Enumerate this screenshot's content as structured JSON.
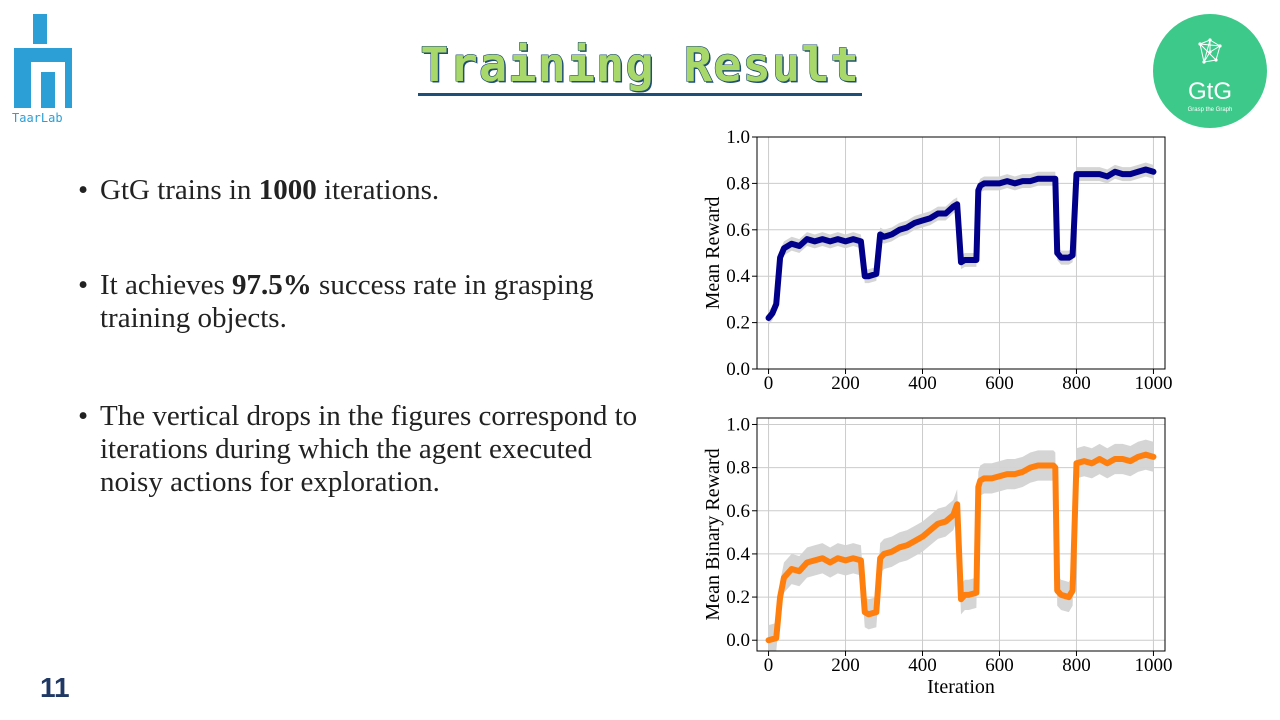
{
  "logo_left": {
    "text": "TaarLab",
    "color": "#2b9fd6"
  },
  "title": "Training Result",
  "logo_right": {
    "name": "GtG",
    "tagline": "Grasp the Graph",
    "color": "#3dc98a"
  },
  "bullets": [
    {
      "pre": "GtG trains in ",
      "bold": "1000",
      "post": " iterations."
    },
    {
      "pre": "It achieves ",
      "bold": "97.5%",
      "post": " success rate in grasping training objects."
    },
    {
      "pre": "",
      "bold": "",
      "post": "The vertical drops in the figures correspond to iterations during which the agent executed noisy actions for exploration."
    }
  ],
  "page_number": "11",
  "chart_data": [
    {
      "type": "line",
      "xlabel": "",
      "ylabel": "Mean Reward",
      "xlim": [
        -30,
        1030
      ],
      "ylim": [
        0.0,
        1.0
      ],
      "xticks": [
        "0",
        "200",
        "400",
        "600",
        "800",
        "1000"
      ],
      "yticks": [
        "0.0",
        "0.2",
        "0.4",
        "0.6",
        "0.8",
        "1.0"
      ],
      "grid": true,
      "line_color": "#00008b",
      "band_color": "#d3d3d3",
      "x": [
        0,
        10,
        20,
        30,
        40,
        60,
        80,
        100,
        120,
        140,
        160,
        180,
        200,
        220,
        240,
        250,
        260,
        280,
        290,
        300,
        320,
        340,
        360,
        380,
        400,
        420,
        440,
        460,
        480,
        490,
        500,
        510,
        520,
        540,
        545,
        550,
        560,
        580,
        600,
        620,
        640,
        660,
        680,
        700,
        720,
        740,
        745,
        750,
        760,
        780,
        790,
        800,
        820,
        840,
        860,
        880,
        900,
        920,
        940,
        960,
        980,
        1000
      ],
      "y": [
        0.22,
        0.24,
        0.28,
        0.48,
        0.52,
        0.54,
        0.53,
        0.56,
        0.55,
        0.56,
        0.55,
        0.56,
        0.55,
        0.56,
        0.55,
        0.4,
        0.4,
        0.41,
        0.58,
        0.57,
        0.58,
        0.6,
        0.61,
        0.63,
        0.64,
        0.65,
        0.67,
        0.67,
        0.7,
        0.71,
        0.46,
        0.47,
        0.47,
        0.47,
        0.77,
        0.79,
        0.8,
        0.8,
        0.8,
        0.81,
        0.8,
        0.81,
        0.81,
        0.82,
        0.82,
        0.82,
        0.82,
        0.5,
        0.48,
        0.48,
        0.49,
        0.84,
        0.84,
        0.84,
        0.84,
        0.83,
        0.85,
        0.84,
        0.84,
        0.85,
        0.86,
        0.85
      ],
      "band_width": 0.03
    },
    {
      "type": "line",
      "xlabel": "Iteration",
      "ylabel": "Mean Binary Reward",
      "xlim": [
        -30,
        1030
      ],
      "ylim": [
        -0.05,
        1.03
      ],
      "xticks": [
        "0",
        "200",
        "400",
        "600",
        "800",
        "1000"
      ],
      "yticks": [
        "0.0",
        "0.2",
        "0.4",
        "0.6",
        "0.8",
        "1.0"
      ],
      "grid": true,
      "line_color": "#ff7f0e",
      "band_color": "#d3d3d3",
      "x": [
        0,
        20,
        30,
        40,
        60,
        80,
        100,
        120,
        140,
        160,
        180,
        200,
        220,
        240,
        250,
        260,
        280,
        290,
        300,
        320,
        340,
        360,
        380,
        400,
        420,
        440,
        460,
        480,
        490,
        500,
        510,
        520,
        540,
        545,
        550,
        560,
        580,
        600,
        620,
        640,
        660,
        680,
        700,
        720,
        740,
        745,
        750,
        760,
        780,
        790,
        800,
        820,
        840,
        860,
        880,
        900,
        920,
        940,
        960,
        980,
        1000
      ],
      "y": [
        0.0,
        0.01,
        0.2,
        0.29,
        0.33,
        0.32,
        0.36,
        0.37,
        0.38,
        0.36,
        0.38,
        0.37,
        0.38,
        0.37,
        0.13,
        0.12,
        0.13,
        0.38,
        0.4,
        0.41,
        0.43,
        0.44,
        0.46,
        0.48,
        0.51,
        0.54,
        0.55,
        0.58,
        0.63,
        0.19,
        0.21,
        0.21,
        0.22,
        0.71,
        0.74,
        0.75,
        0.75,
        0.76,
        0.77,
        0.77,
        0.78,
        0.8,
        0.81,
        0.81,
        0.81,
        0.8,
        0.23,
        0.21,
        0.2,
        0.23,
        0.82,
        0.83,
        0.82,
        0.84,
        0.82,
        0.84,
        0.84,
        0.83,
        0.85,
        0.86,
        0.85
      ],
      "band_width": 0.07
    }
  ]
}
